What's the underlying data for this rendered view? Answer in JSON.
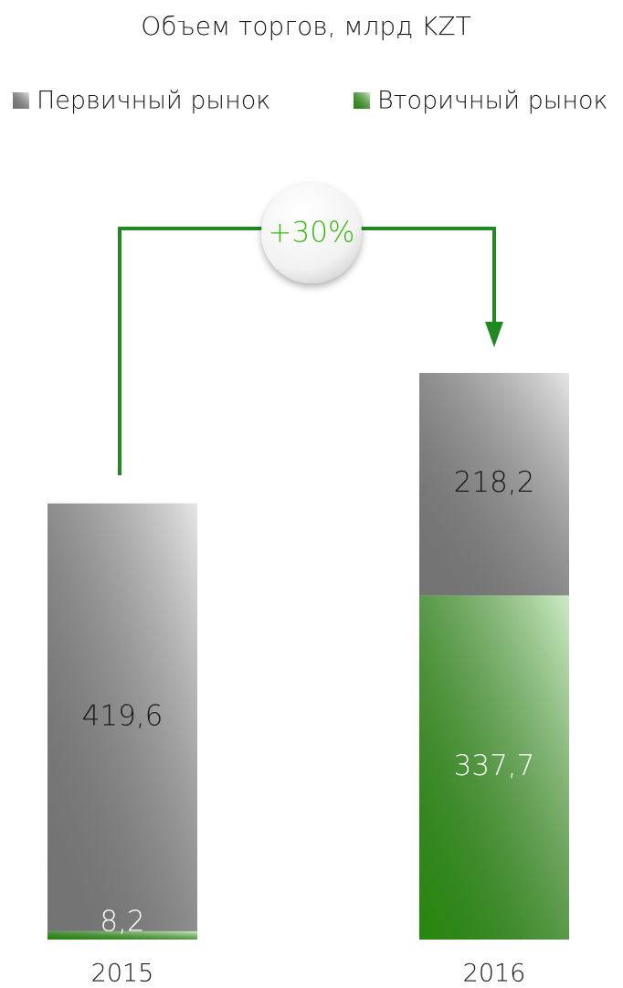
{
  "chart_data": {
    "type": "bar",
    "stacked": true,
    "title": "Объем торгов, млрд KZT",
    "categories": [
      "2015",
      "2016"
    ],
    "series": [
      {
        "name": "Первичный рынок",
        "color": "#9a9a9a",
        "values": [
          419.6,
          218.2
        ],
        "value_labels": [
          "419,6",
          "218,2"
        ]
      },
      {
        "name": "Вторичный рынок",
        "color": "#35b414",
        "values": [
          8.2,
          337.7
        ],
        "value_labels": [
          "8,2",
          "337,7"
        ]
      }
    ],
    "annotation": "+30%"
  }
}
